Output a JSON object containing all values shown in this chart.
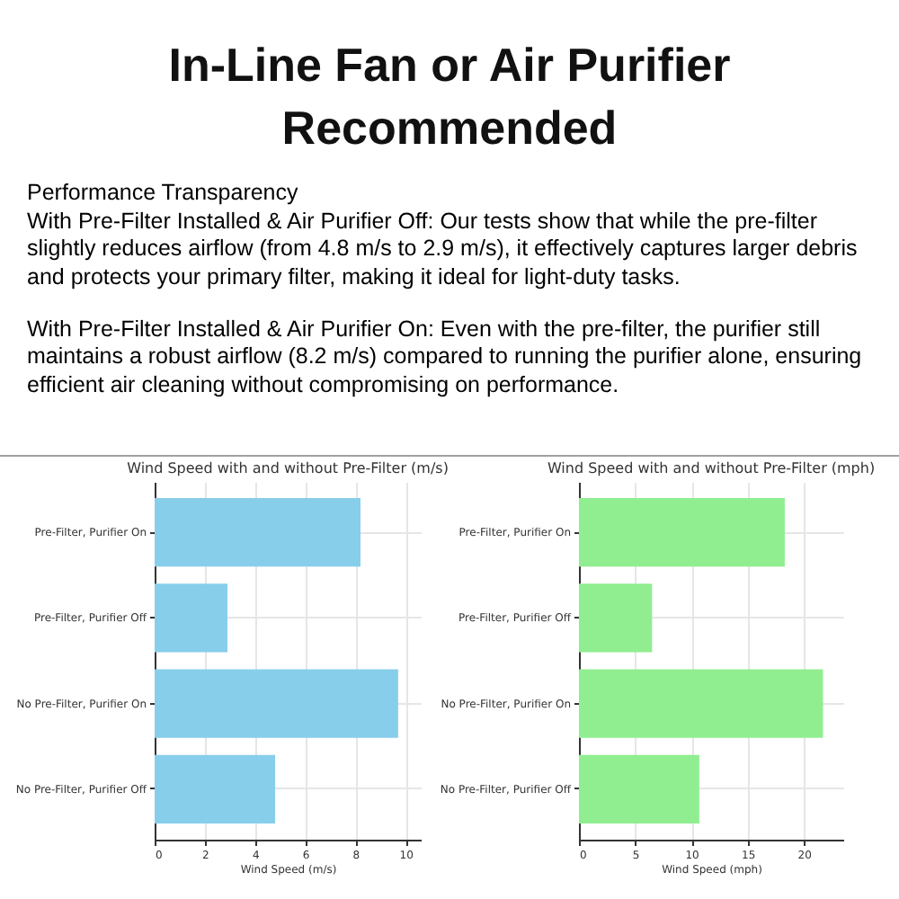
{
  "chart_data": [
    {
      "type": "other",
      "title": "In-Line Fan or Air Purifier Recommended",
      "subtitle": "Performance Transparency",
      "annotations": [
        "With Pre-Filter Installed & Air Purifier Off: Our tests show that while the pre-filter slightly reduces airflow (from 4.8 m/s to 2.9 m/s), it effectively captures larger debris and protects your primary filter, making it ideal for light-duty tasks.",
        "With Pre-Filter Installed & Air Purifier On: Even with the pre-filter, the purifier still maintains a robust airflow (8.2 m/s) compared to running the purifier alone, ensuring efficient air cleaning without compromising on performance."
      ]
    },
    {
      "type": "bar",
      "orientation": "horizontal",
      "title": "Wind Speed with and without Pre-Filter (m/s)",
      "xlabel": "Wind Speed (m/s)",
      "categories": [
        "Pre-Filter, Purifier On",
        "Pre-Filter, Purifier Off",
        "No Pre-Filter, Purifier On",
        "No Pre-Filter, Purifier Off"
      ],
      "values": [
        8.2,
        2.9,
        9.7,
        4.8
      ],
      "color": "#87ceeb",
      "xlim": [
        0,
        10.6
      ],
      "xticks": [
        0,
        2,
        4,
        6,
        8,
        10
      ],
      "grid": true
    },
    {
      "type": "bar",
      "orientation": "horizontal",
      "title": "Wind Speed with and without Pre-Filter (mph)",
      "xlabel": "Wind Speed (mph)",
      "categories": [
        "Pre-Filter, Purifier On",
        "Pre-Filter, Purifier Off",
        "No Pre-Filter, Purifier On",
        "No Pre-Filter, Purifier Off"
      ],
      "values": [
        18.3,
        6.5,
        21.7,
        10.7
      ],
      "color": "#90ee90",
      "xlim": [
        0,
        23.5
      ],
      "xticks": [
        0,
        5,
        10,
        15,
        20
      ],
      "grid": true
    }
  ]
}
